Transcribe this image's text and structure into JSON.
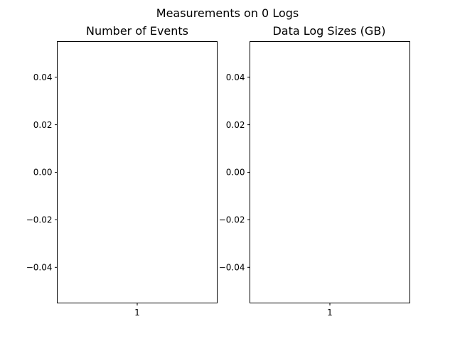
{
  "figure": {
    "suptitle": "Measurements on 0 Logs"
  },
  "chart_data": [
    {
      "type": "bar",
      "title": "Number of Events",
      "xlabel": "",
      "ylabel": "",
      "categories": [],
      "values": [],
      "x_ticks": [
        "1"
      ],
      "xlim": [
        0.5,
        1.5
      ],
      "ylim": [
        -0.055,
        0.055
      ],
      "y_ticks": [
        0.04,
        0.02,
        0.0,
        -0.02,
        -0.04
      ],
      "y_tick_labels": [
        "0.04",
        "0.02",
        "0.00",
        "−0.02",
        "−0.04"
      ],
      "grid": false,
      "legend": "none"
    },
    {
      "type": "bar",
      "title": "Data Log Sizes (GB)",
      "xlabel": "",
      "ylabel": "",
      "categories": [],
      "values": [],
      "x_ticks": [
        "1"
      ],
      "xlim": [
        0.5,
        1.5
      ],
      "ylim": [
        -0.055,
        0.055
      ],
      "y_ticks": [
        0.04,
        0.02,
        0.0,
        -0.02,
        -0.04
      ],
      "y_tick_labels": [
        "0.04",
        "0.02",
        "0.00",
        "−0.02",
        "−0.04"
      ],
      "grid": false,
      "legend": "none"
    }
  ]
}
